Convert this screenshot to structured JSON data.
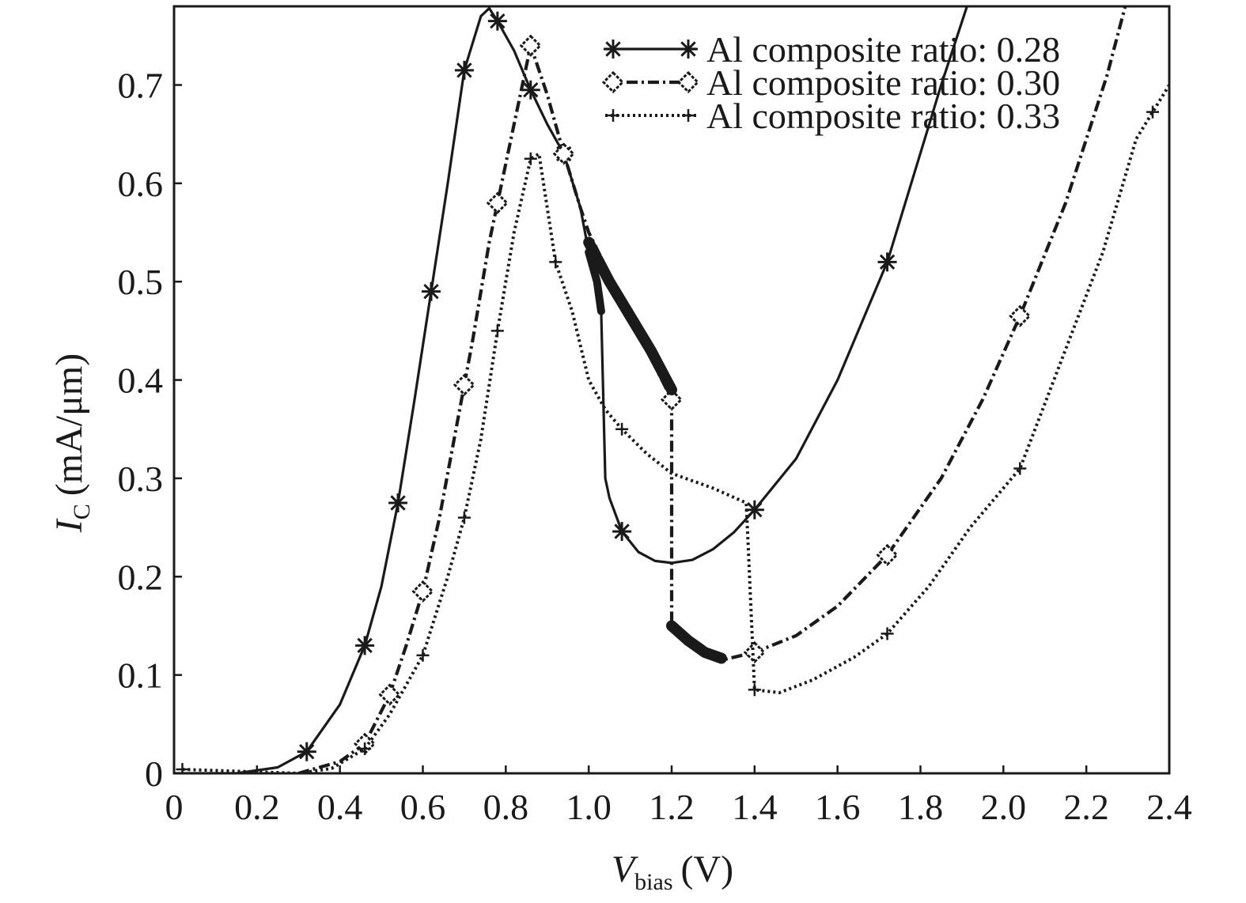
{
  "chart_data": {
    "type": "line",
    "title": "",
    "xlabel": {
      "main": "V",
      "sub": "bias",
      "unit": "(V)"
    },
    "ylabel": {
      "main": "I",
      "sub": "C",
      "unit": "(mA/μm)"
    },
    "xlim": [
      0,
      2.4
    ],
    "ylim": [
      0,
      0.78
    ],
    "x_ticks": [
      0,
      0.2,
      0.4,
      0.6,
      0.8,
      1.0,
      1.2,
      1.4,
      1.6,
      1.8,
      2.0,
      2.2,
      2.4
    ],
    "x_tick_labels": [
      "0",
      "0.2",
      "0.4",
      "0.6",
      "0.8",
      "1.0",
      "1.2",
      "1.4",
      "1.6",
      "1.8",
      "2.0",
      "2.2",
      "2.4"
    ],
    "y_ticks": [
      0,
      0.1,
      0.2,
      0.3,
      0.4,
      0.5,
      0.6,
      0.7
    ],
    "y_tick_labels": [
      "0",
      "0.1",
      "0.2",
      "0.3",
      "0.4",
      "0.5",
      "0.6",
      "0.7"
    ],
    "grid": false,
    "legend_position": "top-right",
    "series": [
      {
        "name": "Al composite ratio: 0.28",
        "line_style": "solid",
        "marker": "asterisk",
        "color": "#1a1a1a",
        "points": [
          [
            0.0,
            0.0
          ],
          [
            0.15,
            0.0
          ],
          [
            0.25,
            0.006
          ],
          [
            0.32,
            0.022
          ],
          [
            0.4,
            0.07
          ],
          [
            0.46,
            0.13
          ],
          [
            0.5,
            0.19
          ],
          [
            0.54,
            0.275
          ],
          [
            0.58,
            0.38
          ],
          [
            0.62,
            0.49
          ],
          [
            0.66,
            0.6
          ],
          [
            0.7,
            0.715
          ],
          [
            0.74,
            0.77
          ],
          [
            0.76,
            0.778
          ],
          [
            0.78,
            0.765
          ],
          [
            0.82,
            0.735
          ],
          [
            0.86,
            0.695
          ],
          [
            0.9,
            0.66
          ],
          [
            0.94,
            0.63
          ],
          [
            0.98,
            0.575
          ],
          [
            1.0,
            0.53
          ],
          [
            1.02,
            0.5
          ],
          [
            1.03,
            0.47
          ],
          [
            1.04,
            0.3
          ],
          [
            1.05,
            0.28
          ],
          [
            1.08,
            0.246
          ],
          [
            1.12,
            0.225
          ],
          [
            1.16,
            0.216
          ],
          [
            1.2,
            0.214
          ],
          [
            1.25,
            0.217
          ],
          [
            1.3,
            0.228
          ],
          [
            1.35,
            0.245
          ],
          [
            1.4,
            0.268
          ],
          [
            1.5,
            0.32
          ],
          [
            1.6,
            0.4
          ],
          [
            1.72,
            0.52
          ],
          [
            1.85,
            0.7
          ],
          [
            1.92,
            0.79
          ]
        ],
        "marker_x": [
          0.32,
          0.46,
          0.54,
          0.62,
          0.7,
          0.78,
          0.86,
          0.94,
          1.08,
          1.4,
          1.72
        ],
        "extra_segments": [
          [
            [
              2.28,
              0.79
            ],
            [
              2.3,
              0.78
            ]
          ]
        ]
      },
      {
        "name": "Al composite ratio: 0.30",
        "line_style": "dash-dot",
        "marker": "diamond",
        "color": "#1a1a1a",
        "points": [
          [
            0.3,
            0.0
          ],
          [
            0.4,
            0.012
          ],
          [
            0.46,
            0.03
          ],
          [
            0.52,
            0.08
          ],
          [
            0.56,
            0.13
          ],
          [
            0.6,
            0.185
          ],
          [
            0.64,
            0.26
          ],
          [
            0.68,
            0.35
          ],
          [
            0.72,
            0.44
          ],
          [
            0.76,
            0.54
          ],
          [
            0.78,
            0.58
          ],
          [
            0.82,
            0.66
          ],
          [
            0.86,
            0.74
          ],
          [
            0.9,
            0.69
          ],
          [
            0.94,
            0.63
          ],
          [
            0.98,
            0.575
          ],
          [
            1.0,
            0.55
          ],
          [
            1.2,
            0.38
          ],
          [
            1.2,
            0.375
          ],
          [
            1.2,
            0.15
          ],
          [
            1.24,
            0.135
          ],
          [
            1.32,
            0.115
          ],
          [
            1.4,
            0.123
          ],
          [
            1.5,
            0.14
          ],
          [
            1.6,
            0.17
          ],
          [
            1.72,
            0.222
          ],
          [
            1.85,
            0.3
          ],
          [
            1.95,
            0.38
          ],
          [
            2.04,
            0.465
          ],
          [
            2.15,
            0.58
          ],
          [
            2.25,
            0.71
          ],
          [
            2.3,
            0.79
          ]
        ],
        "marker_x": [
          0.46,
          0.52,
          0.6,
          0.7,
          0.78,
          0.86,
          0.94,
          1.2,
          1.4,
          1.72,
          2.04
        ]
      },
      {
        "name": "Al composite ratio: 0.33",
        "line_style": "dotted",
        "marker": "plus",
        "color": "#1a1a1a",
        "points": [
          [
            0.02,
            0.004
          ],
          [
            0.3,
            0.0
          ],
          [
            0.38,
            0.005
          ],
          [
            0.46,
            0.025
          ],
          [
            0.52,
            0.06
          ],
          [
            0.6,
            0.12
          ],
          [
            0.66,
            0.2
          ],
          [
            0.7,
            0.26
          ],
          [
            0.74,
            0.34
          ],
          [
            0.78,
            0.45
          ],
          [
            0.82,
            0.55
          ],
          [
            0.86,
            0.625
          ],
          [
            0.88,
            0.63
          ],
          [
            0.92,
            0.52
          ],
          [
            0.96,
            0.47
          ],
          [
            1.0,
            0.4
          ],
          [
            1.04,
            0.37
          ],
          [
            1.08,
            0.35
          ],
          [
            1.14,
            0.325
          ],
          [
            1.2,
            0.305
          ],
          [
            1.3,
            0.29
          ],
          [
            1.38,
            0.275
          ],
          [
            1.4,
            0.085
          ],
          [
            1.46,
            0.082
          ],
          [
            1.54,
            0.095
          ],
          [
            1.64,
            0.118
          ],
          [
            1.72,
            0.142
          ],
          [
            1.82,
            0.19
          ],
          [
            1.92,
            0.25
          ],
          [
            2.04,
            0.31
          ],
          [
            2.14,
            0.42
          ],
          [
            2.24,
            0.53
          ],
          [
            2.32,
            0.645
          ],
          [
            2.4,
            0.7
          ]
        ],
        "marker_x": [
          0.02,
          0.46,
          0.6,
          0.7,
          0.78,
          0.86,
          0.92,
          1.08,
          1.4,
          1.72,
          2.04,
          2.36
        ]
      }
    ]
  }
}
